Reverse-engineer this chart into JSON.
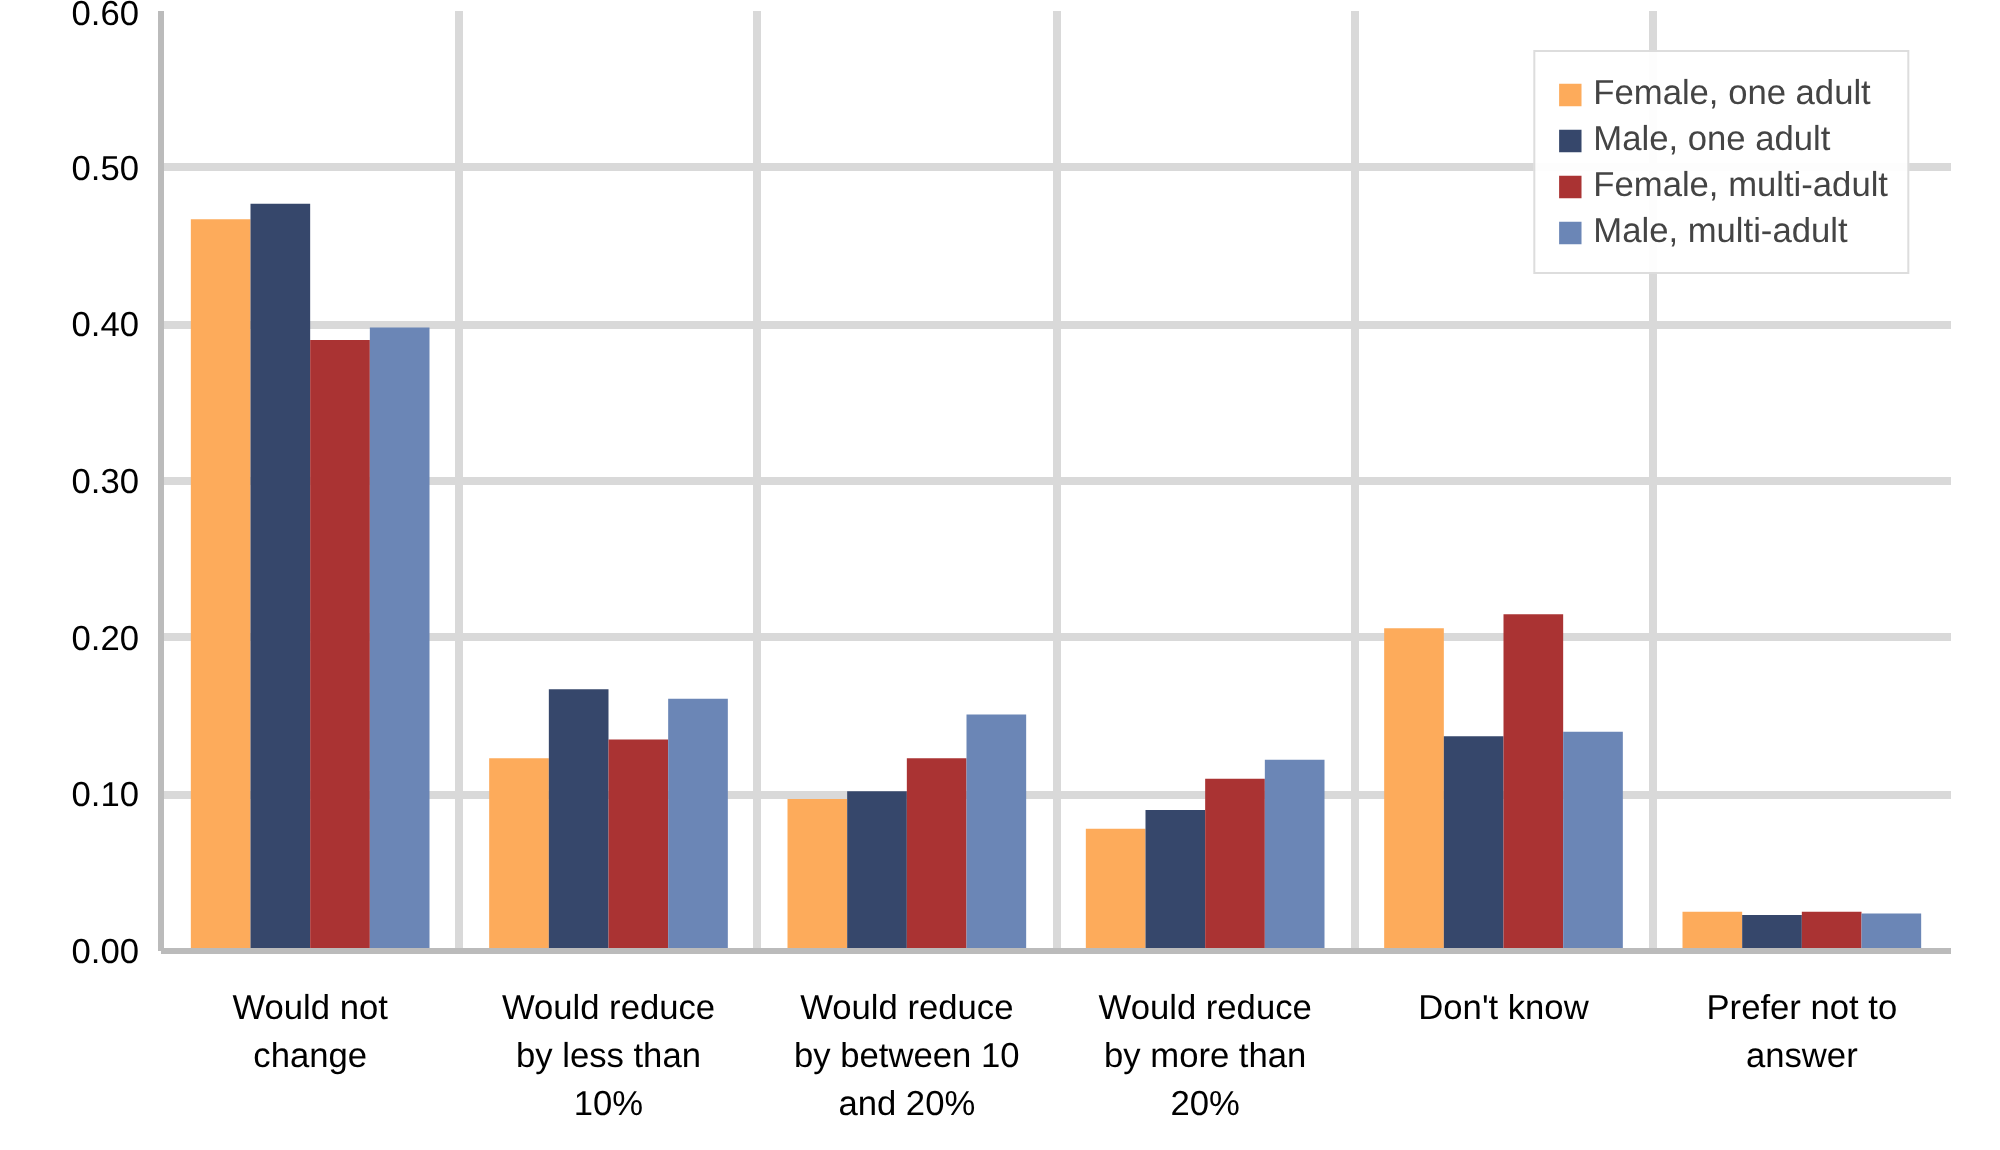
{
  "chart_data": {
    "type": "bar",
    "categories": [
      "Would not change",
      "Would reduce by less than 10%",
      "Would reduce by between 10 and 20%",
      "Would reduce by more than 20%",
      "Don't know",
      "Prefer not to answer"
    ],
    "series": [
      {
        "name": "Female, one adult",
        "color": "#fdab5b",
        "values": [
          0.467,
          0.123,
          0.097,
          0.078,
          0.206,
          0.025
        ]
      },
      {
        "name": "Male, one adult",
        "color": "#36476b",
        "values": [
          0.477,
          0.167,
          0.102,
          0.09,
          0.137,
          0.023
        ]
      },
      {
        "name": "Female, multi-adult",
        "color": "#aa3333",
        "values": [
          0.39,
          0.135,
          0.123,
          0.11,
          0.215,
          0.025
        ]
      },
      {
        "name": "Male, multi-adult",
        "color": "#6b86b6",
        "values": [
          0.398,
          0.161,
          0.151,
          0.122,
          0.14,
          0.024
        ]
      }
    ],
    "ylim": [
      0,
      0.6
    ],
    "yticks": [
      {
        "value": 0,
        "label": "0.00"
      },
      {
        "value": 0.1,
        "label": "0.10"
      },
      {
        "value": 0.2,
        "label": "0.20"
      },
      {
        "value": 0.3,
        "label": "0.30"
      },
      {
        "value": 0.4,
        "label": "0.40"
      },
      {
        "value": 0.5,
        "label": "0.50"
      },
      {
        "value": 0.6,
        "label": "0.60"
      }
    ],
    "grid": true,
    "legend": "top right"
  }
}
